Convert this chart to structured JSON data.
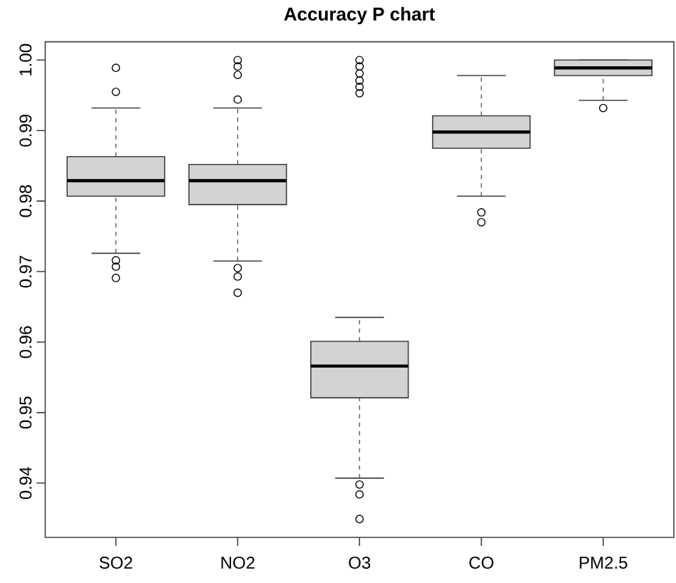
{
  "chart_data": {
    "type": "box",
    "title": "Accuracy P chart",
    "categories": [
      "SO2",
      "NO2",
      "O3",
      "CO",
      "PM2.5"
    ],
    "color": "#d3d3d3",
    "marker": "circle",
    "grid": false,
    "boxes": [
      {
        "low": 0.9726,
        "q1": 0.9807,
        "median": 0.9829,
        "q3": 0.9863,
        "high": 0.9932,
        "outliers": [
          0.9989,
          0.9955,
          0.9716,
          0.9707,
          0.9691
        ]
      },
      {
        "low": 0.9715,
        "q1": 0.9795,
        "median": 0.9829,
        "q3": 0.9852,
        "high": 0.9932,
        "outliers": [
          1.0,
          0.9991,
          0.9979,
          0.9944,
          0.9705,
          0.9693,
          0.967
        ]
      },
      {
        "low": 0.9407,
        "q1": 0.9521,
        "median": 0.9566,
        "q3": 0.9601,
        "high": 0.9635,
        "outliers": [
          1.0,
          0.9991,
          0.9981,
          0.9971,
          0.9962,
          0.9953,
          0.9398,
          0.9384,
          0.9349
        ]
      },
      {
        "low": 0.9807,
        "q1": 0.9875,
        "median": 0.9898,
        "q3": 0.9921,
        "high": 0.9978,
        "outliers": [
          0.9784,
          0.977
        ]
      },
      {
        "low": 0.9943,
        "q1": 0.9978,
        "median": 0.9989,
        "q3": 1.0,
        "high": 1.0,
        "outliers": [
          0.9932
        ]
      }
    ],
    "ylim": [
      0.9323,
      1.0026
    ],
    "yticks": [
      0.94,
      0.95,
      0.96,
      0.97,
      0.98,
      0.99,
      {
        "value": 1,
        "label": "1.00"
      }
    ]
  }
}
